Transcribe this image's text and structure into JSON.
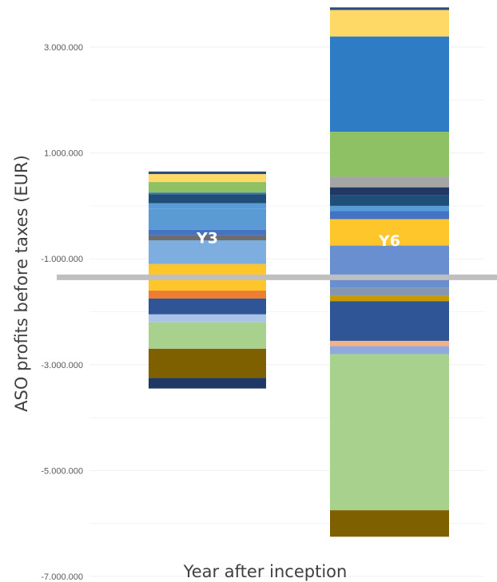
{
  "chart_data": {
    "type": "bar",
    "stacked": true,
    "title": "",
    "xlabel": "Year after inception",
    "ylabel": "ASO profits before taxes (EUR)",
    "ylim": [
      -7000000,
      3800000
    ],
    "yticks": [
      3000000,
      1000000,
      -1000000,
      -3000000,
      -5000000,
      -7000000
    ],
    "ytick_labels": [
      "3.000.000",
      "1.000.000",
      "-1.000.000",
      "-3.000.000",
      "-5.000.000",
      "-7.000.000"
    ],
    "grid": true,
    "legend": "none",
    "reference_line": {
      "value": -1350000,
      "color": "#bfbfbf"
    },
    "bars": [
      {
        "label": "Y3",
        "segments": [
          {
            "from": 600000,
            "to": 650000,
            "color": "#2e4a7d"
          },
          {
            "from": 450000,
            "to": 600000,
            "color": "#ffd966"
          },
          {
            "from": 250000,
            "to": 450000,
            "color": "#8ec163"
          },
          {
            "from": 220000,
            "to": 250000,
            "color": "#2e75b6"
          },
          {
            "from": 50000,
            "to": 220000,
            "color": "#1f4e79"
          },
          {
            "from": -50000,
            "to": 50000,
            "color": "#5b9bd5"
          },
          {
            "from": -450000,
            "to": -50000,
            "color": "#5b9bd5"
          },
          {
            "from": -550000,
            "to": -450000,
            "color": "#4472c4"
          },
          {
            "from": -650000,
            "to": -550000,
            "color": "#6d6d6d"
          },
          {
            "from": -1100000,
            "to": -650000,
            "color": "#7eaee0"
          },
          {
            "from": -1600000,
            "to": -1100000,
            "color": "#ffc62b"
          },
          {
            "from": -1750000,
            "to": -1600000,
            "color": "#ed7d31"
          },
          {
            "from": -2050000,
            "to": -1750000,
            "color": "#2f5597"
          },
          {
            "from": -2200000,
            "to": -2050000,
            "color": "#a9c4e8"
          },
          {
            "from": -2700000,
            "to": -2200000,
            "color": "#a9d18e"
          },
          {
            "from": -3250000,
            "to": -2700000,
            "color": "#7f6000"
          },
          {
            "from": -3450000,
            "to": -3250000,
            "color": "#203864"
          }
        ]
      },
      {
        "label": "Y6",
        "segments": [
          {
            "from": 3700000,
            "to": 3750000,
            "color": "#2e4a7d"
          },
          {
            "from": 3200000,
            "to": 3700000,
            "color": "#ffd966"
          },
          {
            "from": 1400000,
            "to": 3200000,
            "color": "#2e7dc4"
          },
          {
            "from": 550000,
            "to": 1400000,
            "color": "#8ec163"
          },
          {
            "from": 350000,
            "to": 550000,
            "color": "#a5a5a5"
          },
          {
            "from": 200000,
            "to": 350000,
            "color": "#203864"
          },
          {
            "from": 0,
            "to": 200000,
            "color": "#1f4e79"
          },
          {
            "from": -100000,
            "to": 0,
            "color": "#5b9bd5"
          },
          {
            "from": -250000,
            "to": -100000,
            "color": "#4472c4"
          },
          {
            "from": -750000,
            "to": -250000,
            "color": "#ffc62b"
          },
          {
            "from": -1550000,
            "to": -750000,
            "color": "#6a8fd0"
          },
          {
            "from": -1700000,
            "to": -1550000,
            "color": "#8497b0"
          },
          {
            "from": -1800000,
            "to": -1700000,
            "color": "#c99a00"
          },
          {
            "from": -2550000,
            "to": -1800000,
            "color": "#2f5597"
          },
          {
            "from": -2650000,
            "to": -2550000,
            "color": "#f4b183"
          },
          {
            "from": -2800000,
            "to": -2650000,
            "color": "#8faadc"
          },
          {
            "from": -5750000,
            "to": -2800000,
            "color": "#a9d18e"
          },
          {
            "from": -6250000,
            "to": -5750000,
            "color": "#7f6000"
          }
        ]
      }
    ]
  }
}
